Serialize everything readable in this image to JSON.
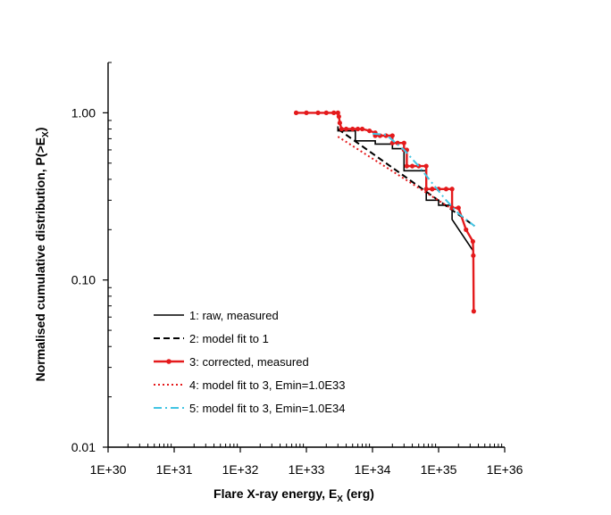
{
  "chart_data": {
    "type": "line",
    "title": "",
    "xlabel": "Flare X-ray energy, E",
    "xlabel_sub": "X",
    "xlabel_unit": " (erg)",
    "ylabel": "Normalised cumulative distribution, P(>E",
    "ylabel_sub": "X",
    "ylabel_end": ")",
    "xscale": "log",
    "yscale": "log",
    "xlim": [
      1e+30,
      1e+36
    ],
    "ylim": [
      0.01,
      2.0
    ],
    "x_ticks": [
      "1E+30",
      "1E+31",
      "1E+32",
      "1E+33",
      "1E+34",
      "1E+35",
      "1E+36"
    ],
    "y_ticks": [
      "0.01",
      "0.10",
      "1.00"
    ],
    "legend_position": "bottom-left",
    "series": [
      {
        "name": "1: raw, measured",
        "color": "#000000",
        "style": "solid",
        "x": [
          3e+33,
          3e+33,
          5.5e+33,
          5.5e+33,
          1.1e+34,
          1.1e+34,
          2e+34,
          2e+34,
          3e+34,
          3e+34,
          6.5e+34,
          6.5e+34,
          1e+35,
          1e+35,
          1.6e+35,
          1.6e+35,
          3.3e+35
        ],
        "y": [
          0.83,
          0.78,
          0.78,
          0.68,
          0.68,
          0.65,
          0.65,
          0.61,
          0.61,
          0.45,
          0.45,
          0.3,
          0.3,
          0.28,
          0.28,
          0.23,
          0.15
        ]
      },
      {
        "name": "2: model fit to 1",
        "color": "#000000",
        "style": "dashed",
        "x": [
          3e+33,
          3.5e+35
        ],
        "y": [
          0.8,
          0.21
        ]
      },
      {
        "name": "3: corrected, measured",
        "color": "#e41a1c",
        "style": "solid-markers",
        "x": [
          7e+32,
          1e+33,
          1.5e+33,
          2e+33,
          2.6e+33,
          3e+33,
          3.1e+33,
          3.2e+33,
          3.4e+33,
          4e+33,
          5e+33,
          6e+33,
          7e+33,
          9e+33,
          1.1e+34,
          1.1e+34,
          1.3e+34,
          1.6e+34,
          2e+34,
          2e+34,
          2.4e+34,
          3e+34,
          3e+34,
          3.3e+34,
          3.3e+34,
          4e+34,
          5e+34,
          6.5e+34,
          6.5e+34,
          8e+34,
          8e+34,
          1e+35,
          1.3e+35,
          1.6e+35,
          1.6e+35,
          2e+35,
          2.6e+35,
          3.3e+35,
          3.35e+35,
          3.4e+35
        ],
        "y": [
          1.0,
          1.0,
          1.0,
          1.0,
          1.0,
          1.0,
          0.95,
          0.87,
          0.8,
          0.8,
          0.8,
          0.8,
          0.8,
          0.78,
          0.76,
          0.73,
          0.73,
          0.73,
          0.73,
          0.66,
          0.66,
          0.66,
          0.6,
          0.6,
          0.48,
          0.48,
          0.48,
          0.48,
          0.35,
          0.35,
          0.35,
          0.35,
          0.35,
          0.35,
          0.27,
          0.27,
          0.2,
          0.17,
          0.14,
          0.065
        ]
      },
      {
        "name": "4: model fit to 3, Emin=1.0E33",
        "color": "#e41a1c",
        "style": "dotted",
        "x": [
          3e+33,
          1.5e+35
        ],
        "y": [
          0.72,
          0.27
        ]
      },
      {
        "name": "5: model fit to 3, Emin=1.0E34",
        "color": "#41c4e3",
        "style": "dashdot",
        "x": [
          1e+34,
          1.6e+34,
          3e+34,
          5e+34,
          8e+34,
          1.3e+35,
          2e+35,
          3.5e+35
        ],
        "y": [
          0.75,
          0.74,
          0.6,
          0.48,
          0.38,
          0.3,
          0.25,
          0.21
        ]
      }
    ]
  }
}
